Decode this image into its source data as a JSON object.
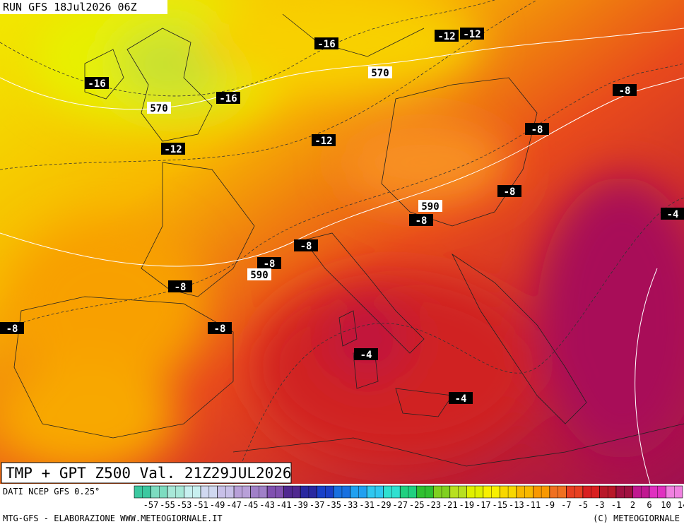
{
  "header": {
    "run": "RUN GFS 18Jul2026 06Z",
    "title": "TMP + GPT Z500 Val. 21Z29JUL2026"
  },
  "map_labels": {
    "temperature": [
      "-16",
      "-16",
      "-12",
      "-12",
      "-16",
      "-12",
      "-12",
      "-8",
      "-8",
      "-8",
      "-8",
      "-4",
      "-8",
      "-8",
      "-8",
      "-8",
      "-8",
      "-4",
      "-4"
    ],
    "geopotential": [
      "570",
      "570",
      "590",
      "590"
    ]
  },
  "colorbar": {
    "source": "DATI NCEP GFS 0.25°",
    "labels": [
      "-57",
      "-55",
      "-53",
      "-51",
      "-49",
      "-47",
      "-45",
      "-43",
      "-41",
      "-39",
      "-37",
      "-35",
      "-33",
      "-31",
      "-29",
      "-27",
      "-25",
      "-23",
      "-21",
      "-19",
      "-17",
      "-15",
      "-13",
      "-11",
      "-9",
      "-7",
      "-5",
      "-3",
      "-1",
      "2",
      "6",
      "10",
      "14"
    ],
    "colors": [
      "#3cc8a0",
      "#7ddcc0",
      "#a8e8d8",
      "#c8f0f0",
      "#d0d8f0",
      "#c8c0e8",
      "#b8a0d8",
      "#a080c8",
      "#8050b0",
      "#502890",
      "#2828a0",
      "#1840c8",
      "#1870e0",
      "#20a0f0",
      "#30c8f0",
      "#30e0d0",
      "#20d080",
      "#30c030",
      "#80d020",
      "#b8e020",
      "#e0f000",
      "#f8f000",
      "#f8d800",
      "#f8b800",
      "#f89800",
      "#f07020",
      "#e84020",
      "#d82020",
      "#b81828",
      "#a01040",
      "#c01890",
      "#e030c0",
      "#f080e0"
    ]
  },
  "footer": {
    "left": "MTG-GFS - ELABORAZIONE WWW.METEOGIORNALE.IT",
    "right": "(C) METEOGIORNALE"
  }
}
